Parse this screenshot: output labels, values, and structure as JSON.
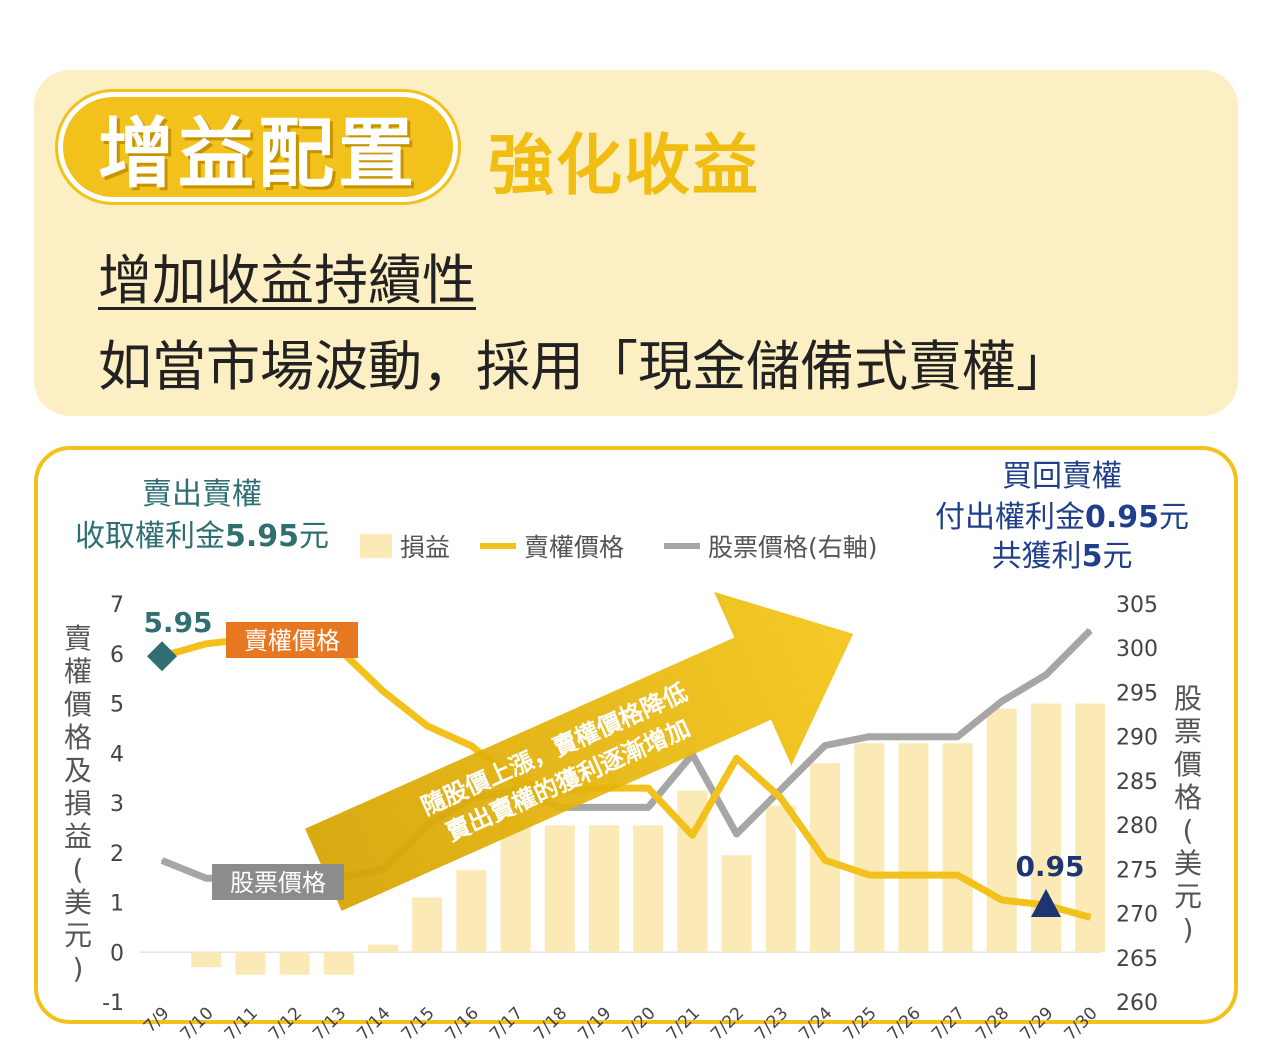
{
  "header": {
    "badge": "增益配置",
    "subtitle": "強化收益",
    "line1": "增加收益持續性",
    "line2": "如當市場波動，採用「現金儲備式賣權」"
  },
  "colors": {
    "gold": "#f3c11b",
    "panel_bg": "#fcefc4",
    "bar": "#fbe9b6",
    "stock_line": "#a6a6a6",
    "teal": "#2f6f71",
    "navy": "#1f3f8a",
    "orange_label": "#e87722"
  },
  "chart_data": {
    "type": "bar+line",
    "categories": [
      "7/9",
      "7/10",
      "7/11",
      "7/12",
      "7/13",
      "7/14",
      "7/15",
      "7/16",
      "7/17",
      "7/18",
      "7/19",
      "7/20",
      "7/21",
      "7/22",
      "7/23",
      "7/24",
      "7/25",
      "7/26",
      "7/27",
      "7/28",
      "7/29",
      "7/30"
    ],
    "series": [
      {
        "name": "損益",
        "type": "bar",
        "axis": "left",
        "values": [
          0,
          -0.3,
          -0.45,
          -0.45,
          -0.45,
          0.15,
          1.1,
          1.65,
          2.7,
          2.55,
          2.55,
          2.55,
          3.25,
          1.95,
          2.95,
          3.8,
          4.2,
          4.2,
          4.2,
          4.9,
          5.0,
          5.0
        ]
      },
      {
        "name": "賣權價格",
        "type": "line",
        "axis": "left",
        "values": [
          5.95,
          6.2,
          6.3,
          6.3,
          6.1,
          5.25,
          4.55,
          4.15,
          3.45,
          3.25,
          3.3,
          3.3,
          2.35,
          3.9,
          3.1,
          1.85,
          1.55,
          1.55,
          1.55,
          1.05,
          0.95,
          0.7
        ]
      },
      {
        "name": "股票價格(右軸)",
        "type": "line",
        "axis": "right",
        "values": [
          276,
          274,
          274,
          274,
          274,
          275,
          280,
          283,
          284,
          282,
          282,
          282,
          288,
          279,
          284,
          289,
          290,
          290,
          290,
          294,
          297,
          302
        ]
      }
    ],
    "y_left": {
      "label": "賣權價格及損益(美元)",
      "ticks": [
        -1,
        0,
        1,
        2,
        3,
        4,
        5,
        6,
        7
      ],
      "min": -1,
      "max": 7
    },
    "y_right": {
      "label": "股票價格(美元)",
      "ticks": [
        260,
        265,
        270,
        275,
        280,
        285,
        290,
        295,
        300,
        305
      ],
      "min": 260,
      "max": 305
    },
    "legend": {
      "position": "top",
      "items": [
        "損益",
        "賣權價格",
        "股票價格(右軸)"
      ]
    },
    "annotations": {
      "sell_note": [
        "賣出賣權",
        "收取權利金",
        "5.95",
        "元"
      ],
      "buy_note": [
        "買回賣權",
        "付出權利金",
        "0.95",
        "元",
        "共獲利",
        "5",
        "元"
      ],
      "start_value": "5.95",
      "end_value": "0.95",
      "put_label": "賣權價格",
      "stock_label": "股票價格",
      "arrow_text": [
        "隨股價上漲，賣權價格降低",
        "賣出賣權的獲利逐漸增加"
      ]
    }
  }
}
